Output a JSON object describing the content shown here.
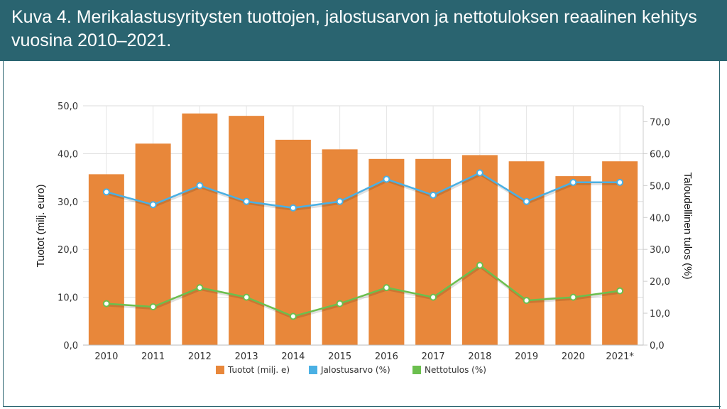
{
  "header": {
    "title": "Kuva 4. Merikalastusyritysten tuottojen, jalostusarvon ja nettotuloksen reaalinen kehitys vuosina 2010–2021."
  },
  "colors": {
    "header_bg": "#2a6470",
    "bar": "#e8873a",
    "jalostusarvo": "#4ab0e4",
    "nettotulos": "#6bbf4e"
  },
  "chart_data": {
    "type": "bar",
    "categories": [
      "2010",
      "2011",
      "2012",
      "2013",
      "2014",
      "2015",
      "2016",
      "2017",
      "2018",
      "2019",
      "2020",
      "2021*"
    ],
    "series": [
      {
        "name": "Tuotot (milj. e)",
        "type": "bar",
        "axis": "left",
        "values": [
          35.7,
          42.1,
          48.4,
          47.9,
          42.9,
          40.9,
          38.9,
          38.9,
          39.7,
          38.4,
          35.3,
          38.4
        ]
      },
      {
        "name": "Jalostusarvo (%)",
        "type": "line",
        "axis": "right",
        "values": [
          48.0,
          44.0,
          50.0,
          45.0,
          43.0,
          45.0,
          52.0,
          47.0,
          54.0,
          45.0,
          51.0,
          51.0
        ]
      },
      {
        "name": "Nettotulos (%)",
        "type": "line",
        "axis": "right",
        "values": [
          13.0,
          12.0,
          18.0,
          15.0,
          9.0,
          13.0,
          18.0,
          15.0,
          25.0,
          14.0,
          15.0,
          17.0
        ]
      }
    ],
    "ylabel": "Tuotot (milj. euro)",
    "y2label": "Taloudellinen tulos (%)",
    "ylim": [
      0,
      50
    ],
    "y2lim": [
      0,
      75
    ],
    "yticks": [
      "0,0",
      "10,0",
      "20,0",
      "30,0",
      "40,0",
      "50,0"
    ],
    "y2ticks": [
      "0,0",
      "10,0",
      "20,0",
      "30,0",
      "40,0",
      "50,0",
      "60,0",
      "70,0"
    ],
    "grid": true,
    "legend": "bottom"
  }
}
